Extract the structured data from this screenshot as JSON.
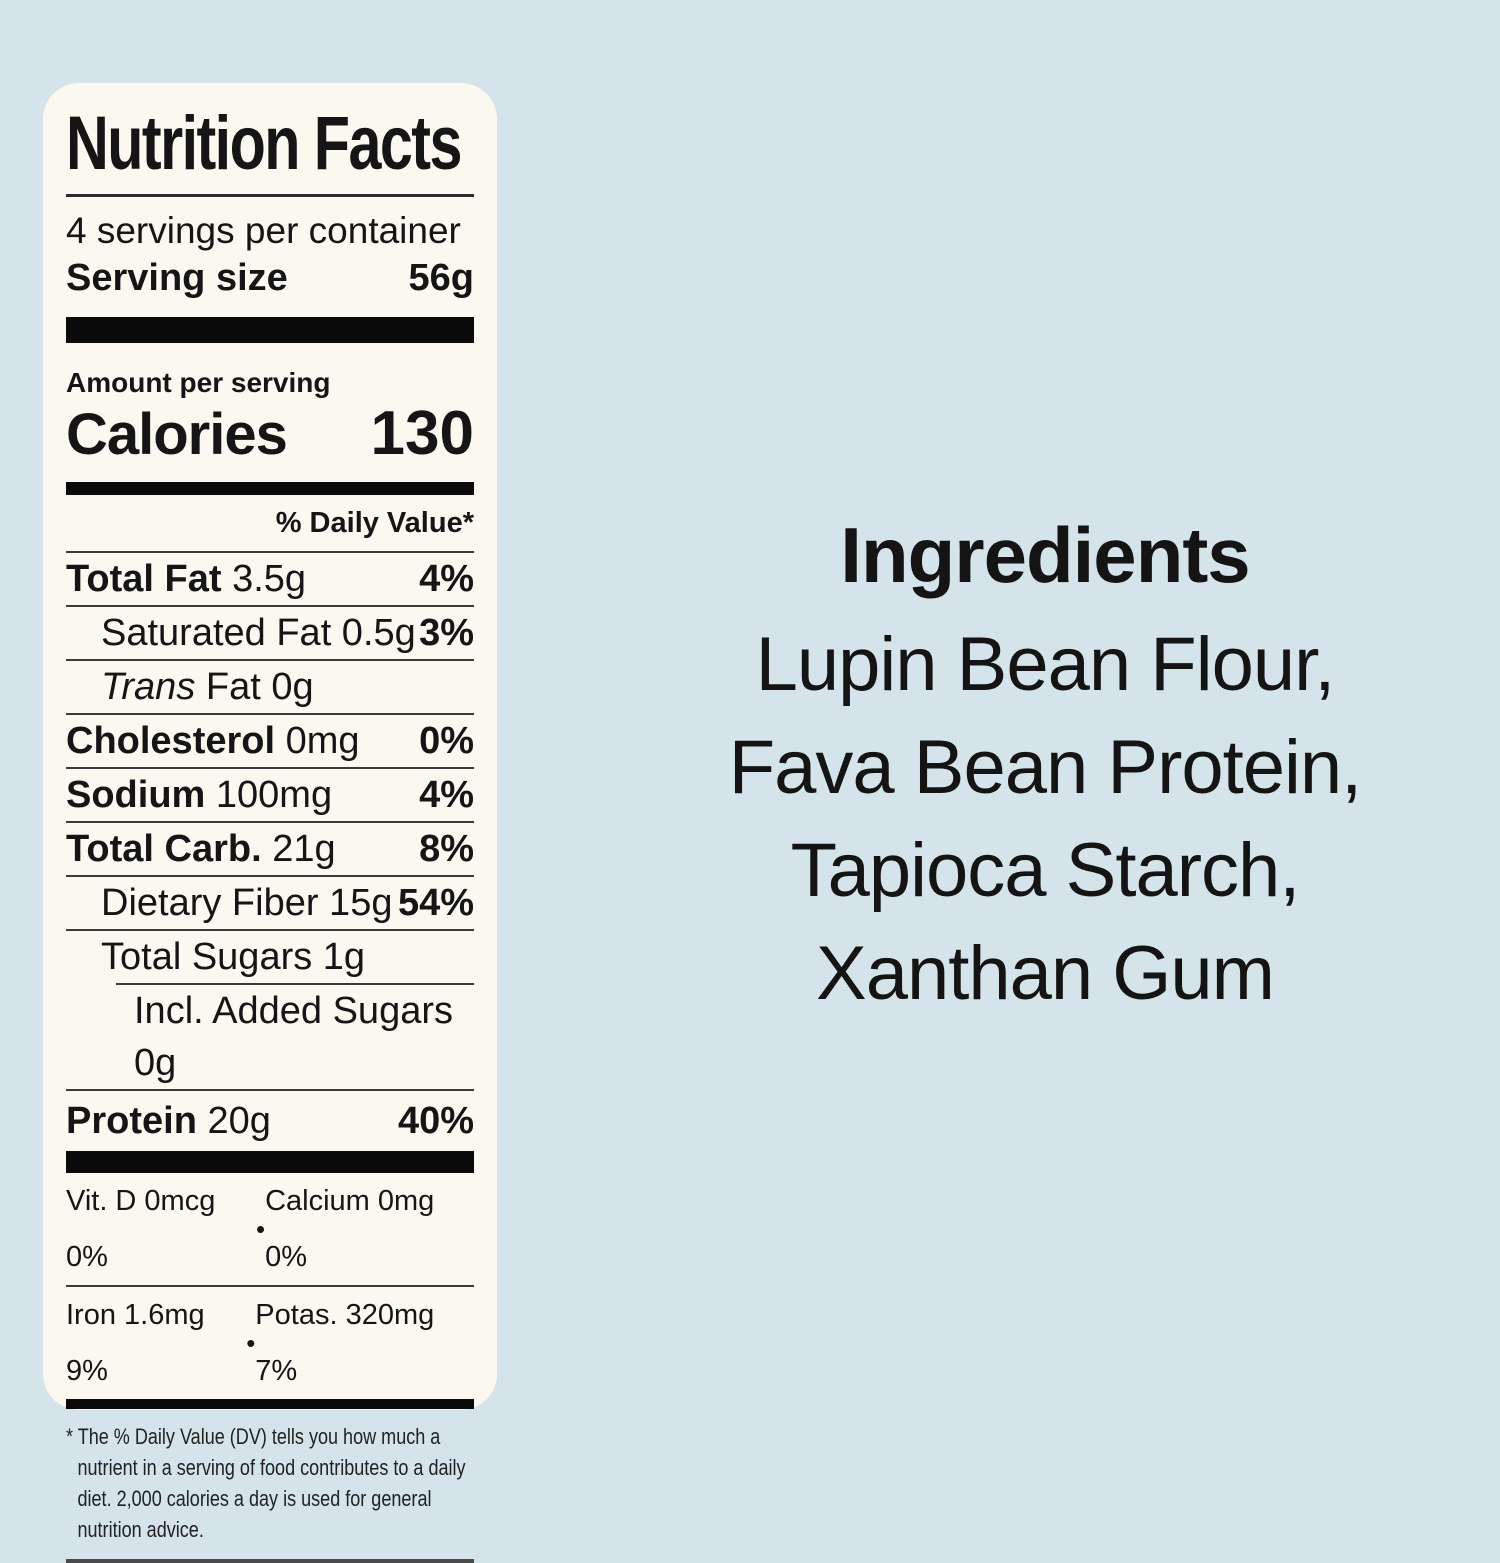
{
  "page": {
    "background_color": "#d5e4ea"
  },
  "nutrition_label": {
    "card_color": "#faf8ef",
    "text_color": "#151515",
    "title": "Nutrition Facts",
    "servings_per_container": "4 servings per container",
    "serving_size": {
      "label": "Serving size",
      "value": "56g"
    },
    "amount_per_serving": "Amount per serving",
    "calories": {
      "label": "Calories",
      "value": "130"
    },
    "daily_value_header": "% Daily Value*",
    "rows": [
      {
        "name": "Total Fat",
        "amount": "3.5g",
        "dv": "4%",
        "indent": 0,
        "bold": true,
        "italic": false
      },
      {
        "name": "Saturated Fat",
        "amount": "0.5g",
        "dv": "3%",
        "indent": 1,
        "bold": false,
        "italic": false
      },
      {
        "name": "Trans",
        "amount": "Fat 0g",
        "dv": "",
        "indent": 1,
        "bold": false,
        "italic": true
      },
      {
        "name": "Cholesterol",
        "amount": "0mg",
        "dv": "0%",
        "indent": 0,
        "bold": true,
        "italic": false
      },
      {
        "name": "Sodium",
        "amount": "100mg",
        "dv": "4%",
        "indent": 0,
        "bold": true,
        "italic": false
      },
      {
        "name": "Total Carb.",
        "amount": "21g",
        "dv": "8%",
        "indent": 0,
        "bold": true,
        "italic": false
      },
      {
        "name": "Dietary Fiber",
        "amount": "15g",
        "dv": "54%",
        "indent": 1,
        "bold": false,
        "italic": false
      },
      {
        "name": "Total Sugars",
        "amount": "1g",
        "dv": "",
        "indent": 1,
        "bold": false,
        "italic": false
      },
      {
        "name": "Incl. Added Sugars",
        "amount": "0g",
        "dv": "",
        "indent": 2,
        "bold": false,
        "italic": false,
        "rule_indent": true
      },
      {
        "name": "Protein",
        "amount": "20g",
        "dv": "40%",
        "indent": 0,
        "bold": true,
        "italic": false,
        "tall": true
      }
    ],
    "micronutrients": [
      {
        "left": "Vit. D 0mcg 0%",
        "separator": "•",
        "right": "Calcium 0mg 0%"
      },
      {
        "left": "Iron 1.6mg 9%",
        "separator": "•",
        "right": "Potas. 320mg 7%"
      }
    ],
    "footnote": "* The % Daily Value (DV) tells you how much a nutrient in a serving of food contributes to a daily diet. 2,000 calories a day is used for general nutrition advice."
  },
  "ingredients": {
    "title": "Ingredients",
    "items": [
      "Lupin Bean Flour,",
      "Fava Bean Protein,",
      "Tapioca Starch,",
      "Xanthan Gum"
    ]
  }
}
